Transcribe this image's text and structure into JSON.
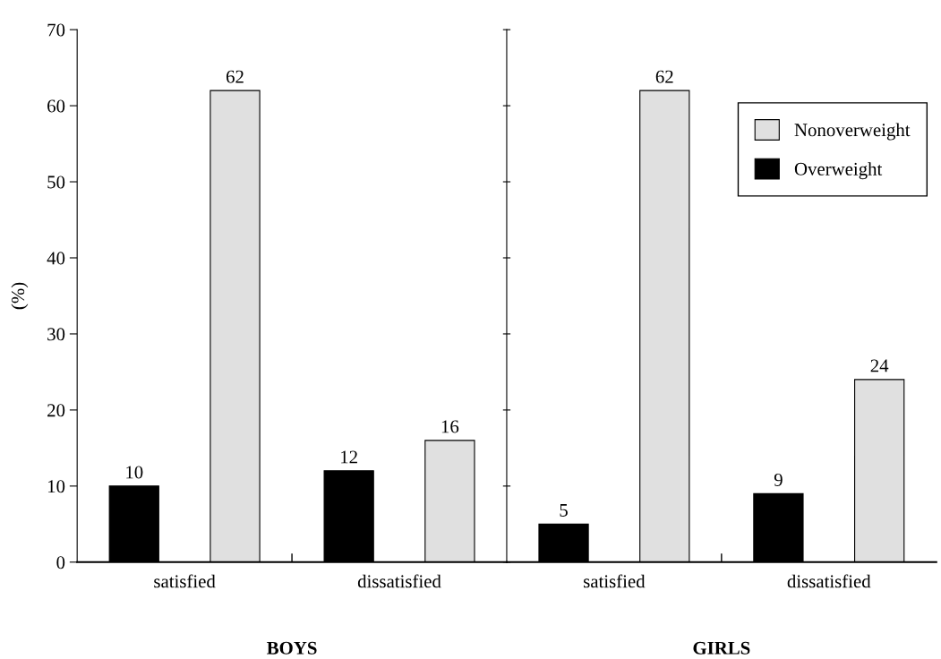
{
  "chart_data": [
    {
      "type": "bar",
      "xlabel": "BOYS",
      "ylabel": "(%)",
      "categories": [
        "satisfied",
        "dissatisfied"
      ],
      "ylim": [
        0,
        70
      ],
      "yticks": [
        0,
        10,
        20,
        30,
        40,
        50,
        60,
        70
      ],
      "data_labels": true,
      "grid": false,
      "legend": false,
      "series": [
        {
          "color": "#000000",
          "values": [
            10,
            12
          ]
        },
        {
          "color": "#e0e0e0",
          "values": [
            62,
            16
          ]
        }
      ]
    },
    {
      "type": "bar",
      "xlabel": "GIRLS",
      "categories": [
        "satisfied",
        "dissatisfied"
      ],
      "ylim": [
        0,
        70
      ],
      "yticks": [
        0,
        10,
        20,
        30,
        40,
        50,
        60,
        70
      ],
      "tick_labels": "x",
      "data_labels": true,
      "grid": false,
      "legend": "top right",
      "series": [
        {
          "name": "Overweight",
          "color": "#000000",
          "values": [
            5,
            9
          ]
        },
        {
          "name": "Nonoverweight",
          "color": "#e0e0e0",
          "values": [
            62,
            24
          ]
        }
      ]
    }
  ]
}
